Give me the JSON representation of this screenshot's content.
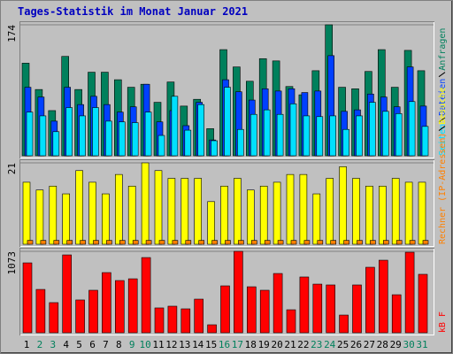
{
  "chart_data": [
    {
      "type": "bar",
      "title": "Tages-Statistik im Monat Januar 2021",
      "ylim": [
        0,
        174
      ],
      "yticks": [
        174
      ],
      "grid": true,
      "series": [
        {
          "name": "Anfragen",
          "color": "#00805c",
          "values": [
            123,
            88,
            60,
            132,
            88,
            111,
            111,
            101,
            91,
            95,
            71,
            98,
            66,
            75,
            36,
            141,
            118,
            99,
            129,
            126,
            92,
            81,
            113,
            174,
            91,
            89,
            112,
            141,
            91,
            140,
            113
          ]
        },
        {
          "name": "Dateien",
          "color": "#0040ff",
          "values": [
            91,
            78,
            46,
            91,
            68,
            79,
            68,
            58,
            65,
            95,
            45,
            60,
            40,
            71,
            21,
            101,
            85,
            74,
            89,
            86,
            89,
            84,
            86,
            133,
            59,
            61,
            82,
            78,
            65,
            118,
            66
          ]
        },
        {
          "name": "Seiten",
          "color": "#00e0ff",
          "values": [
            58,
            53,
            32,
            64,
            53,
            64,
            46,
            45,
            44,
            58,
            27,
            79,
            34,
            68,
            20,
            91,
            35,
            55,
            61,
            55,
            69,
            53,
            52,
            53,
            35,
            53,
            71,
            59,
            56,
            72,
            39
          ]
        }
      ]
    },
    {
      "type": "bar",
      "ylim": [
        0,
        21
      ],
      "yticks": [
        21
      ],
      "grid": true,
      "series": [
        {
          "name": "Besuche",
          "color": "#ffff00",
          "values": [
            16,
            14,
            15,
            13,
            19,
            16,
            13,
            18,
            15,
            21,
            19,
            17,
            17,
            17,
            11,
            15,
            17,
            14,
            15,
            16,
            18,
            18,
            13,
            17,
            20,
            17,
            15,
            15,
            17,
            16,
            16
          ]
        },
        {
          "name": "Rechner (IP-Adressen)",
          "color": "#ff8000",
          "values": [
            1,
            1,
            1,
            1,
            1,
            1,
            1,
            1,
            1,
            1,
            1,
            1,
            1,
            1,
            1,
            1,
            1,
            1,
            1,
            1,
            1,
            1,
            1,
            1,
            1,
            1,
            1,
            1,
            1,
            1,
            1
          ]
        }
      ]
    },
    {
      "type": "bar",
      "ylim": [
        0,
        1073
      ],
      "yticks": [
        1073
      ],
      "grid": true,
      "categories": [
        "1",
        "2",
        "3",
        "4",
        "5",
        "6",
        "7",
        "8",
        "9",
        "10",
        "11",
        "12",
        "13",
        "14",
        "15",
        "16",
        "17",
        "18",
        "19",
        "20",
        "21",
        "22",
        "23",
        "24",
        "25",
        "26",
        "27",
        "28",
        "29",
        "30",
        "31"
      ],
      "category_colors": [
        "#000000",
        "#00805c",
        "#00805c",
        "#000000",
        "#000000",
        "#000000",
        "#000000",
        "#000000",
        "#00805c",
        "#00805c",
        "#000000",
        "#000000",
        "#000000",
        "#000000",
        "#000000",
        "#00805c",
        "#00805c",
        "#000000",
        "#000000",
        "#000000",
        "#000000",
        "#000000",
        "#00805c",
        "#00805c",
        "#000000",
        "#000000",
        "#000000",
        "#000000",
        "#000000",
        "#00805c",
        "#00805c"
      ],
      "series": [
        {
          "name": "kB F",
          "color": "#ff0000",
          "values": [
            921,
            571,
            397,
            1026,
            432,
            560,
            793,
            688,
            711,
            991,
            327,
            350,
            315,
            443,
            105,
            618,
            1073,
            606,
            560,
            781,
            303,
            735,
            641,
            630,
            233,
            630,
            863,
            956,
            501,
            1061,
            770
          ]
        }
      ]
    }
  ]
}
